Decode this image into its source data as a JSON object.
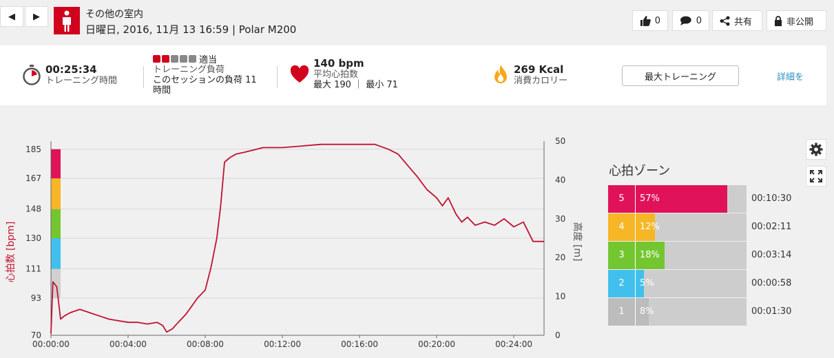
{
  "header": {
    "title": "その他の室内",
    "subtitle": "日曜日, 2016, 11月 13 16:59 | Polar M200",
    "prev_icon": "◀",
    "next_icon": "▶",
    "like_count": "0",
    "comment_count": "0",
    "share_label": "共有",
    "privacy_label": "非公開"
  },
  "summary": {
    "duration": "00:25:34",
    "duration_label": "トレーニング時間",
    "load_level": "適当",
    "load_label": "トレーニング負荷",
    "load_detail": "このセッションの負荷 11 時間",
    "load_blocks_filled": 2,
    "load_blocks_total": 5,
    "hr_avg": "140 bpm",
    "hr_avg_label": "平均心拍数",
    "hr_max_min": "最大 190 ｜ 最小 71",
    "calories": "269 Kcal",
    "calories_label": "消費カロリー",
    "training_benefit": "最大トレーニング",
    "details_link": "詳細を"
  },
  "colors": {
    "accent": "#d1021d",
    "zone5": "#e0125a",
    "zone4": "#f6b626",
    "zone3": "#74c631",
    "zone2": "#42c0ed",
    "zone1": "#bcbcbc",
    "link": "#2a8fc0"
  },
  "chart_data": {
    "type": "line",
    "ylabel": "心拍数 [bpm]",
    "y2label": "高度 [m]",
    "x_ticks": [
      "00:00:00",
      "00:04:00",
      "00:08:00",
      "00:12:00",
      "00:16:00",
      "00:20:00",
      "00:24:00"
    ],
    "y_ticks": [
      "70",
      "93",
      "111",
      "130",
      "148",
      "167",
      "185"
    ],
    "y2_ticks": [
      "0",
      "10",
      "20",
      "30",
      "40",
      "50"
    ],
    "ylim": [
      70,
      190
    ],
    "y2lim": [
      0,
      50
    ],
    "xlim_min": [
      0,
      25.57
    ],
    "series": [
      {
        "x": [
          0,
          0.1,
          0.3,
          0.5,
          0.7,
          1,
          1.5,
          2,
          2.5,
          3,
          3.5,
          4,
          4.5,
          5,
          5.5,
          5.8,
          6,
          6.3,
          6.6,
          7,
          7.3,
          7.6,
          8,
          8.3,
          8.6,
          8.8,
          9,
          9.3,
          9.6,
          10,
          11,
          12,
          13,
          14,
          15,
          16,
          16.8,
          17.5,
          18,
          18.5,
          19,
          19.5,
          20,
          20.3,
          20.6,
          21,
          21.3,
          21.6,
          22,
          22.5,
          23,
          23.5,
          24,
          24.5,
          25,
          25.57
        ],
        "y": [
          71,
          103,
          100,
          80,
          82,
          84,
          86,
          84,
          82,
          80,
          79,
          78,
          78,
          77,
          78,
          76,
          72,
          74,
          78,
          83,
          88,
          93,
          98,
          112,
          130,
          150,
          177,
          180,
          182,
          183,
          186,
          186,
          187,
          188,
          188,
          188,
          188,
          185,
          182,
          175,
          168,
          160,
          155,
          150,
          155,
          145,
          140,
          143,
          138,
          140,
          138,
          142,
          137,
          140,
          128,
          128
        ]
      }
    ]
  },
  "zones": {
    "title": "心拍ゾーン",
    "items": [
      {
        "num": "5",
        "pct": "57%",
        "time": "00:10:30",
        "fill": 0.57
      },
      {
        "num": "4",
        "pct": "12%",
        "time": "00:02:11",
        "fill": 0.12
      },
      {
        "num": "3",
        "pct": "18%",
        "time": "00:03:14",
        "fill": 0.18
      },
      {
        "num": "2",
        "pct": "5%",
        "time": "00:00:58",
        "fill": 0.05
      },
      {
        "num": "1",
        "pct": "8%",
        "time": "00:01:30",
        "fill": 0.08
      }
    ]
  }
}
